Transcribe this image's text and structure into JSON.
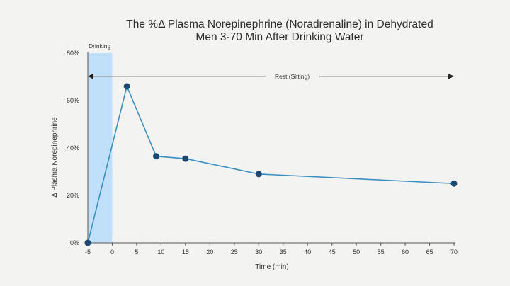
{
  "chart_data": {
    "type": "line",
    "title_line1": "The %Δ Plasma Norepinephrine (Noradrenaline) in Dehydrated",
    "title_line2": "Men 3-70 Min After Drinking Water",
    "xlabel": "Time (min)",
    "ylabel": "Δ Plasma Norepinephrine",
    "xlim": [
      -5,
      70
    ],
    "ylim": [
      0,
      80
    ],
    "x_ticks": [
      -5,
      0,
      5,
      10,
      15,
      20,
      25,
      30,
      35,
      40,
      45,
      50,
      55,
      60,
      65,
      70
    ],
    "x_tick_labels": [
      "-5",
      "0",
      "5",
      "10",
      "15",
      "20",
      "25",
      "30",
      "35",
      "40",
      "45",
      "50",
      "55",
      "60",
      "65",
      "70"
    ],
    "y_ticks": [
      0,
      20,
      40,
      60,
      80
    ],
    "y_tick_labels": [
      "0%",
      "20%",
      "40%",
      "60%",
      "80%"
    ],
    "grid": false,
    "series": [
      {
        "x": [
          -5,
          3,
          9,
          15,
          30,
          70
        ],
        "y": [
          0,
          66,
          36.5,
          35.5,
          29,
          25
        ]
      }
    ],
    "shaded_region": {
      "x_start": -5,
      "x_end": 0,
      "label": "Drinking",
      "color": "#bfe0f8"
    },
    "arrow_annotation": {
      "x_start": -5,
      "x_end": 70,
      "y": 75,
      "label": "Rest (Sitting)"
    },
    "line_color": "#3a8fc0",
    "marker_color": "#1d4872"
  }
}
